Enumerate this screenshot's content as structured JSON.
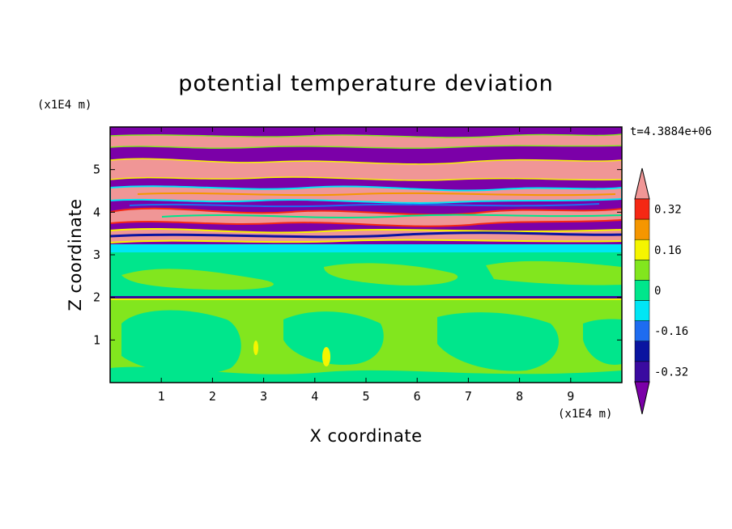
{
  "chart_data": {
    "type": "heatmap",
    "title": "potential temperature deviation",
    "xlabel": "X coordinate",
    "ylabel": "Z coordinate",
    "x_unit": "(x1E4 m)",
    "y_unit": "(x1E4 m)",
    "time_label": "t=4.3884e+06",
    "xlim": [
      0,
      10
    ],
    "ylim": [
      0,
      6
    ],
    "x_ticks": [
      "1",
      "2",
      "3",
      "4",
      "5",
      "6",
      "7",
      "8",
      "9"
    ],
    "y_ticks": [
      "1",
      "2",
      "3",
      "4",
      "5"
    ],
    "colorbar": {
      "levels": [
        -0.4,
        -0.32,
        -0.24,
        -0.16,
        -0.08,
        0,
        0.08,
        0.16,
        0.24,
        0.32,
        0.4
      ],
      "tick_labels": [
        "0.32",
        "0.16",
        "0",
        "-0.16",
        "-0.32"
      ],
      "colors": [
        "#7B00A8",
        "#3A0AA0",
        "#0A14A0",
        "#1E6CF0",
        "#00E6F5",
        "#00E68C",
        "#82E61E",
        "#F5F500",
        "#F59600",
        "#F52814",
        "#F09696"
      ]
    },
    "layers": [
      {
        "z_range": [
          0,
          1.95
        ],
        "dominant_level": "0 to 0.08",
        "color": "#82E61E",
        "note": "blobs of -0.08 to 0 inside"
      },
      {
        "z_range": [
          1.95,
          2.05
        ],
        "dominant_level": "-0.32 to 0.16",
        "color": "#3A0AA0"
      },
      {
        "z_range": [
          2.05,
          3.1
        ],
        "dominant_level": "-0.08 to 0.08",
        "color": "#00E68C"
      },
      {
        "z_range": [
          3.1,
          3.25
        ],
        "dominant_level": "-0.16 to -0.08",
        "color": "#00E6F5"
      },
      {
        "z_range": [
          3.25,
          6.0
        ],
        "dominant_level": "alternating < -0.4 and > 0.4",
        "color": "#7B00A8"
      }
    ]
  }
}
